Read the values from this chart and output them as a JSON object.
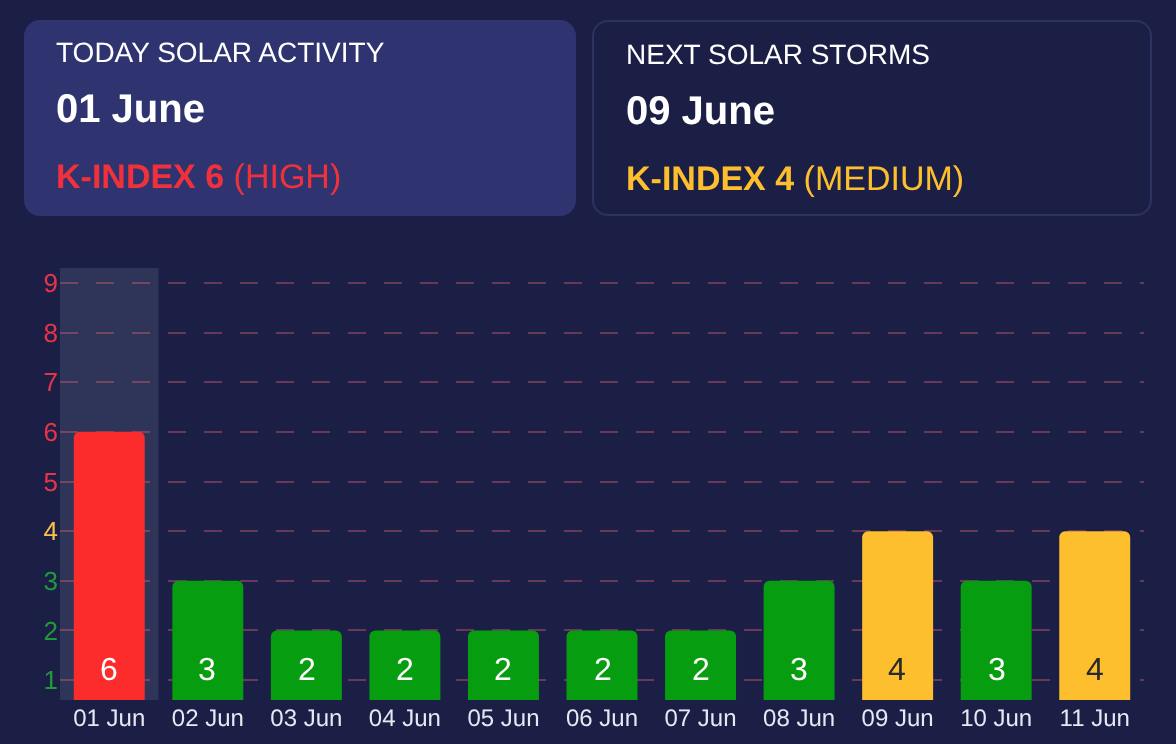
{
  "chart_data": {
    "type": "bar",
    "annotations": [
      "TODAY SOLAR ACTIVITY",
      "01 June",
      "K-INDEX 6 (HIGH)",
      "NEXT SOLAR STORMS",
      "09 June",
      "K-INDEX 4 (MEDIUM)"
    ],
    "categories": [
      "01 Jun",
      "02 Jun",
      "03 Jun",
      "04 Jun",
      "05 Jun",
      "06 Jun",
      "07 Jun",
      "08 Jun",
      "09 Jun",
      "10 Jun",
      "11 Jun"
    ],
    "values": [
      6,
      3,
      2,
      2,
      2,
      2,
      2,
      3,
      4,
      3,
      4
    ],
    "colors": [
      "#fc2c2c",
      "#079d10",
      "#079d10",
      "#079d10",
      "#079d10",
      "#079d10",
      "#079d10",
      "#079d10",
      "#fdbf2e",
      "#079d10",
      "#fdbf2e"
    ],
    "data_labels": true,
    "ylim": [
      0.6,
      9.3
    ],
    "yticks": [
      1,
      2,
      3,
      4,
      5,
      6,
      7,
      8,
      9
    ],
    "bands": [
      {
        "axis": "x",
        "from": "01 Jun",
        "to": "01 Jun",
        "color": "#2f3558"
      }
    ],
    "grid": "y"
  }
}
